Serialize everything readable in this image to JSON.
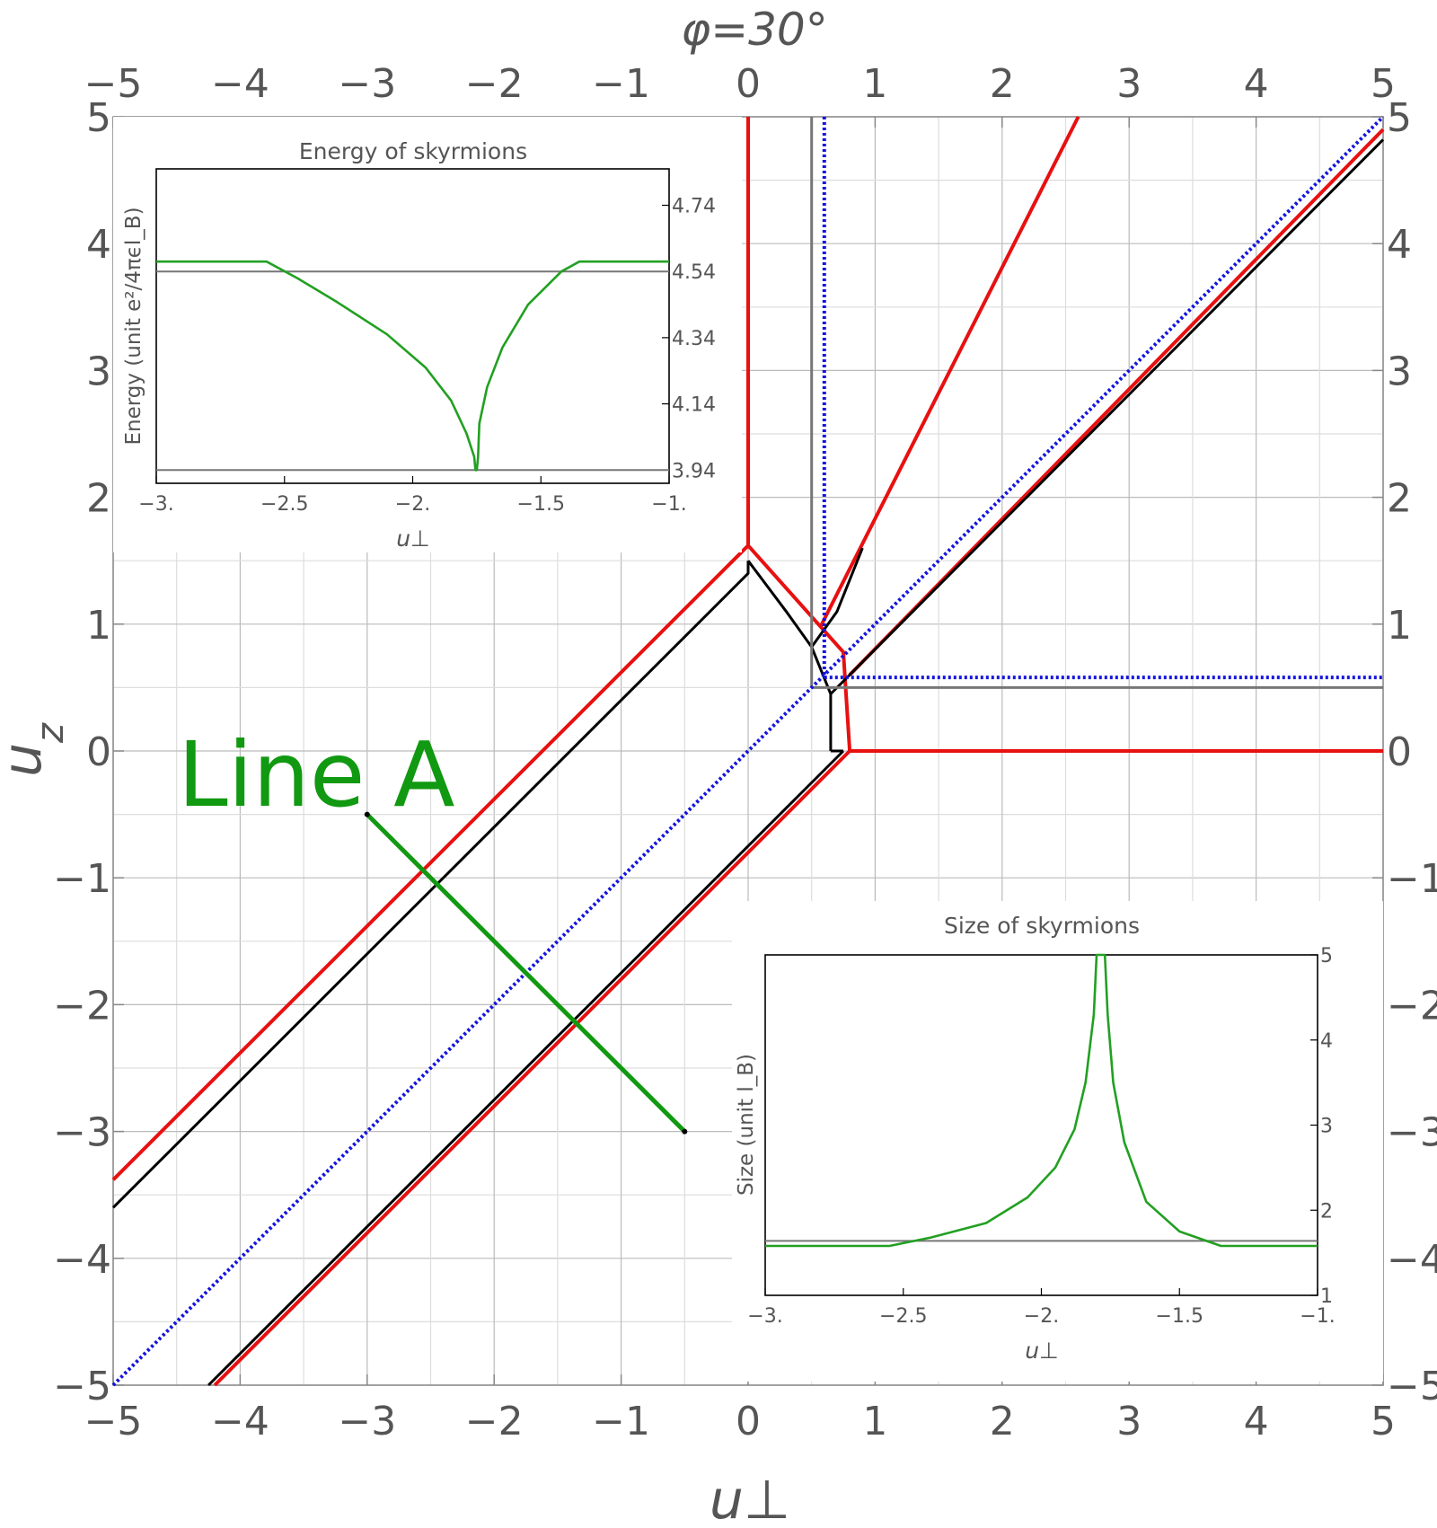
{
  "chart_data": {
    "type": "line",
    "title": "φ=30°",
    "xlabel": "u⊥",
    "ylabel": "u_z",
    "xlim": [
      -5,
      5
    ],
    "ylim": [
      -5,
      5
    ],
    "xticks": [
      -5,
      -4,
      -3,
      -2,
      -1,
      0,
      1,
      2,
      3,
      4,
      5
    ],
    "yticks": [
      -5,
      -4,
      -3,
      -2,
      -1,
      0,
      1,
      2,
      3,
      4,
      5
    ],
    "grid": true,
    "annotation": {
      "text": "Line A",
      "points": [
        [
          -3,
          -0.5
        ],
        [
          -0.5,
          -3
        ]
      ],
      "color": "#119911"
    },
    "series": [
      {
        "color": "#e81010",
        "style": "solid",
        "segments": [
          [
            [
              0,
              5
            ],
            [
              0,
              1.62
            ],
            [
              -5,
              -3.38
            ]
          ],
          [
            [
              0,
              1.62
            ],
            [
              0.57,
              0.98
            ],
            [
              0.75,
              0.78
            ],
            [
              0.8,
              0
            ]
          ],
          [
            [
              0.8,
              0
            ],
            [
              5,
              0
            ]
          ],
          [
            [
              0.57,
              0.98
            ],
            [
              2.6,
              5
            ]
          ],
          [
            [
              0.8,
              0.6
            ],
            [
              5,
              4.9
            ]
          ],
          [
            [
              0.8,
              0
            ],
            [
              -4.2,
              -5
            ]
          ]
        ]
      },
      {
        "color": "#000000",
        "style": "solid",
        "segments": [
          [
            [
              0,
              1.5
            ],
            [
              0,
              1.4
            ],
            [
              -5,
              -3.6
            ]
          ],
          [
            [
              0,
              1.5
            ],
            [
              0.3,
              1.1
            ],
            [
              0.5,
              0.82
            ],
            [
              0.65,
              0.45
            ],
            [
              0.65,
              0
            ]
          ],
          [
            [
              0.65,
              0
            ],
            [
              0.75,
              0
            ]
          ],
          [
            [
              0.75,
              0
            ],
            [
              -4.25,
              -5
            ]
          ],
          [
            [
              0.5,
              0.82
            ],
            [
              0.7,
              1.1
            ],
            [
              0.9,
              1.6
            ]
          ],
          [
            [
              0.65,
              0.45
            ],
            [
              5,
              4.82
            ]
          ]
        ]
      },
      {
        "color": "#777777",
        "style": "solid",
        "segments": [
          [
            [
              0.5,
              5
            ],
            [
              0.5,
              0.5
            ]
          ],
          [
            [
              0.5,
              0.5
            ],
            [
              5,
              0.5
            ]
          ]
        ]
      },
      {
        "color": "#1515dd",
        "style": "dotted",
        "segments": [
          [
            [
              -5,
              -5
            ],
            [
              5,
              5
            ]
          ],
          [
            [
              0.6,
              5
            ],
            [
              0.6,
              0.58
            ]
          ],
          [
            [
              0.6,
              0.58
            ],
            [
              5,
              0.58
            ]
          ]
        ]
      }
    ],
    "insets": [
      {
        "title": "Energy of skyrmions",
        "xlabel": "u⊥",
        "ylabel": "Energy (unit e²/4πϵl_B)",
        "xlim": [
          -3,
          -1
        ],
        "ylim": [
          3.9,
          4.85
        ],
        "xticks": [
          -3,
          -2.5,
          -2,
          -1.5,
          -1
        ],
        "xticklabels": [
          "−3.",
          "−2.5",
          "−2.",
          "−1.5",
          "−1."
        ],
        "yticks": [
          3.94,
          4.14,
          4.34,
          4.54,
          4.74
        ],
        "yticklabels": [
          "3.94",
          "4.14",
          "4.34",
          "4.54",
          "4.74"
        ],
        "series": [
          {
            "color": "#777777",
            "x": [
              -3,
              -1
            ],
            "y": [
              4.54,
              4.54
            ]
          },
          {
            "color": "#777777",
            "x": [
              -3,
              -1
            ],
            "y": [
              3.94,
              3.94
            ]
          },
          {
            "color": "#22a022",
            "x": [
              -3,
              -2.57,
              -2.45,
              -2.3,
              -2.1,
              -1.95,
              -1.85,
              -1.79,
              -1.76,
              -1.755,
              -1.75,
              -1.745,
              -1.74,
              -1.71,
              -1.65,
              -1.55,
              -1.42,
              -1.35,
              -1,
              -1.0
            ],
            "y": [
              4.57,
              4.57,
              4.52,
              4.45,
              4.35,
              4.25,
              4.15,
              4.05,
              3.98,
              3.94,
              3.94,
              3.98,
              4.08,
              4.19,
              4.31,
              4.44,
              4.54,
              4.57,
              4.57,
              4.57
            ]
          }
        ]
      },
      {
        "title": "Size of skyrmions",
        "xlabel": "u⊥",
        "ylabel": "Size (unit l_B)",
        "xlim": [
          -3,
          -1
        ],
        "ylim": [
          1,
          5
        ],
        "xticks": [
          -3,
          -2.5,
          -2,
          -1.5,
          -1
        ],
        "xticklabels": [
          "−3.",
          "−2.5",
          "−2.",
          "−1.5",
          "−1."
        ],
        "yticks": [
          1,
          2,
          3,
          4,
          5
        ],
        "yticklabels": [
          "1",
          "2",
          "3",
          "4",
          "5"
        ],
        "series": [
          {
            "color": "#777777",
            "x": [
              -3,
              -1
            ],
            "y": [
              1.64,
              1.64
            ]
          },
          {
            "color": "#22a022",
            "x": [
              -3,
              -2.55,
              -2.4,
              -2.2,
              -2.05,
              -1.95,
              -1.88,
              -1.84,
              -1.81,
              -1.8,
              -1.77,
              -1.76,
              -1.74,
              -1.7,
              -1.62,
              -1.5,
              -1.35,
              -1.0
            ],
            "y": [
              1.58,
              1.58,
              1.68,
              1.85,
              2.15,
              2.5,
              2.95,
              3.5,
              4.3,
              5,
              5,
              4.3,
              3.5,
              2.8,
              2.1,
              1.75,
              1.58,
              1.58
            ]
          }
        ]
      }
    ]
  }
}
